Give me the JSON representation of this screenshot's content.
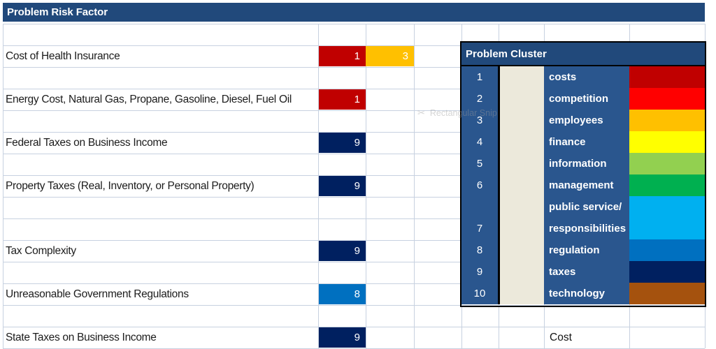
{
  "app": {
    "title": "Problem Risk Factor"
  },
  "watermark": {
    "label": "Rectangular Snip"
  },
  "palette": {
    "header_blue": "#21497B",
    "panel_blue": "#2A568E",
    "beige": "#ECE9DB",
    "gridline": "#C7D1E0"
  },
  "risk_table": {
    "rows": [
      {
        "label": "Cost of Health Insurance",
        "grid_row": 1,
        "values": [
          {
            "value": "1",
            "color": "#C00000"
          },
          {
            "value": "3",
            "color": "#FFC000"
          }
        ]
      },
      {
        "label": "Energy Cost, Natural Gas, Propane, Gasoline, Diesel, Fuel Oil",
        "grid_row": 3,
        "values": [
          {
            "value": "1",
            "color": "#C00000"
          }
        ]
      },
      {
        "label": "Federal Taxes on Business Income",
        "grid_row": 5,
        "values": [
          {
            "value": "9",
            "color": "#002060"
          }
        ]
      },
      {
        "label": "Property Taxes (Real, Inventory, or Personal Property)",
        "grid_row": 7,
        "values": [
          {
            "value": "9",
            "color": "#002060"
          }
        ]
      },
      {
        "label": "Tax Complexity",
        "grid_row": 10,
        "values": [
          {
            "value": "9",
            "color": "#002060"
          }
        ]
      },
      {
        "label": "Unreasonable Government Regulations",
        "grid_row": 12,
        "values": [
          {
            "value": "8",
            "color": "#0070C0"
          }
        ]
      },
      {
        "label": "State Taxes on Business Income",
        "grid_row": 14,
        "values": [
          {
            "value": "9",
            "color": "#002060"
          }
        ]
      }
    ]
  },
  "problem_cluster": {
    "title": "Problem Cluster",
    "items": [
      {
        "num": "1",
        "label": "costs",
        "color": "#C00000"
      },
      {
        "num": "2",
        "label": "competition",
        "color": "#FF0000"
      },
      {
        "num": "3",
        "label": "employees",
        "color": "#FFC000"
      },
      {
        "num": "4",
        "label": "finance",
        "color": "#FFFF00"
      },
      {
        "num": "5",
        "label": "information",
        "color": "#92D050"
      },
      {
        "num": "6",
        "label": "management",
        "color": "#00B050"
      },
      {
        "num": "7",
        "label": "public service/",
        "label2": "responsibilities",
        "color": "#00B0F0",
        "double": true
      },
      {
        "num": "8",
        "label": "regulation",
        "color": "#0070C0"
      },
      {
        "num": "9",
        "label": "taxes",
        "color": "#002060"
      },
      {
        "num": "10",
        "label": "technology",
        "color": "#A5520E"
      }
    ]
  },
  "footer": {
    "cost_label": "Cost"
  }
}
